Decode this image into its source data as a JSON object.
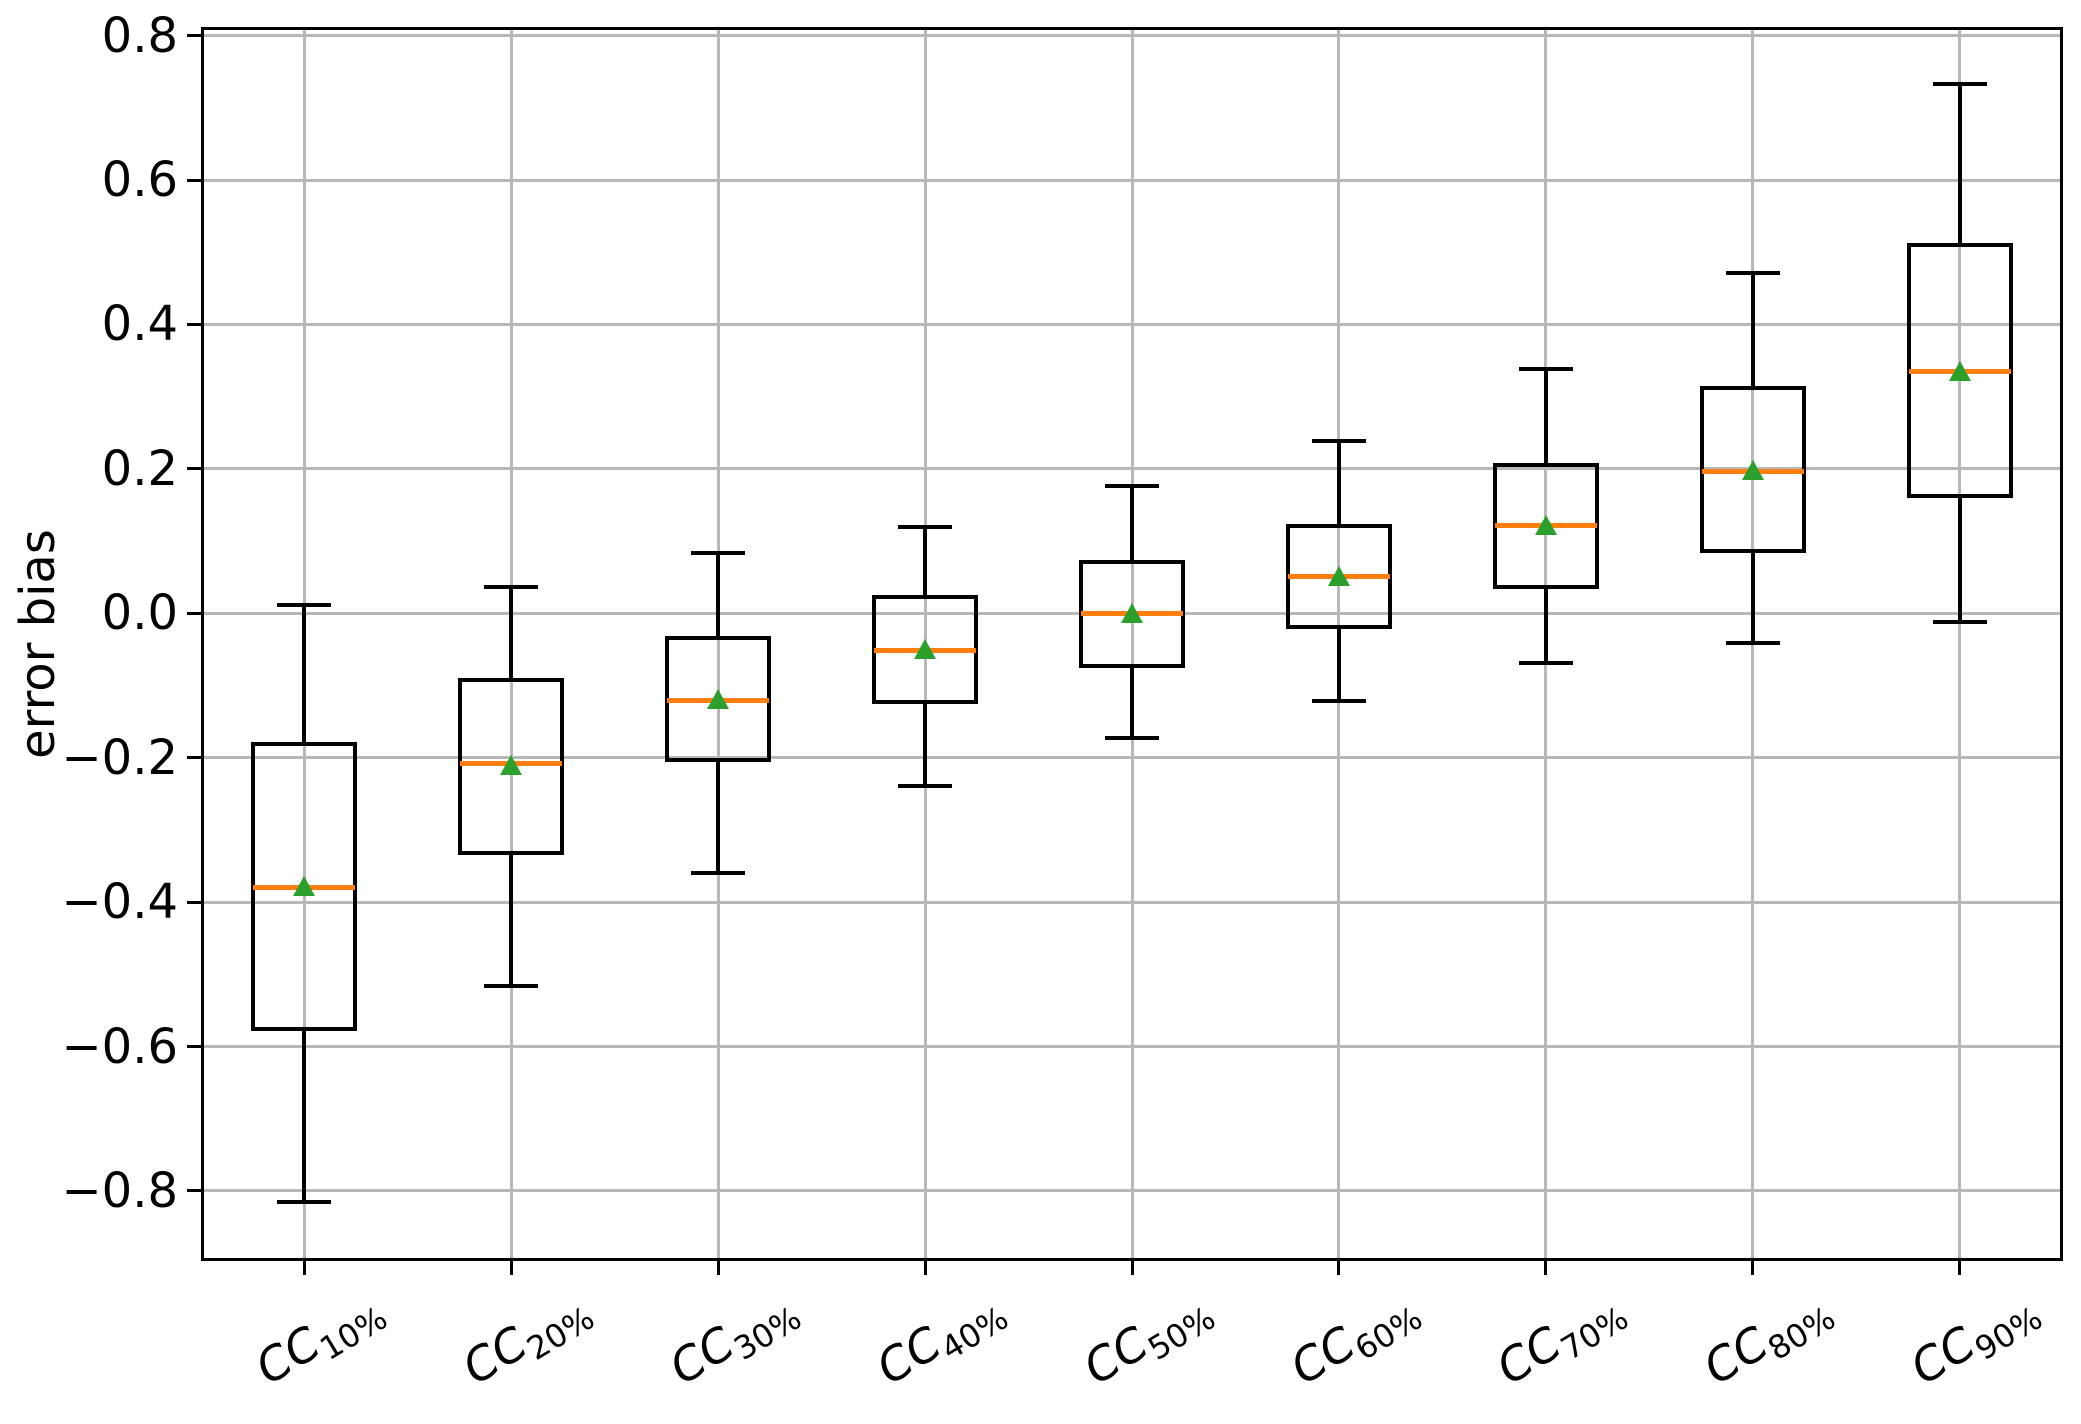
{
  "chart_data": {
    "type": "box",
    "title": "",
    "xlabel": "",
    "ylabel": "error bias",
    "grid": true,
    "legend": null,
    "ylim": [
      -0.897,
      0.812
    ],
    "yticks": [
      {
        "value": 0.8,
        "label": "0.8"
      },
      {
        "value": 0.6,
        "label": "0.6"
      },
      {
        "value": 0.4,
        "label": "0.4"
      },
      {
        "value": 0.2,
        "label": "0.2"
      },
      {
        "value": 0.0,
        "label": "0.0"
      },
      {
        "value": -0.2,
        "label": "−0.2"
      },
      {
        "value": -0.4,
        "label": "−0.4"
      },
      {
        "value": -0.6,
        "label": "−0.6"
      },
      {
        "value": -0.8,
        "label": "−0.8"
      }
    ],
    "categories": [
      {
        "prefix": "CC",
        "subscript": "10%",
        "label": "CC10%"
      },
      {
        "prefix": "CC",
        "subscript": "20%",
        "label": "CC20%"
      },
      {
        "prefix": "CC",
        "subscript": "30%",
        "label": "CC30%"
      },
      {
        "prefix": "CC",
        "subscript": "40%",
        "label": "CC40%"
      },
      {
        "prefix": "CC",
        "subscript": "50%",
        "label": "CC50%"
      },
      {
        "prefix": "CC",
        "subscript": "60%",
        "label": "CC60%"
      },
      {
        "prefix": "CC",
        "subscript": "70%",
        "label": "CC70%"
      },
      {
        "prefix": "CC",
        "subscript": "80%",
        "label": "CC80%"
      },
      {
        "prefix": "CC",
        "subscript": "90%",
        "label": "CC90%"
      }
    ],
    "boxes": [
      {
        "category": "CC10%",
        "whisker_low": -0.815,
        "q1": -0.578,
        "median": -0.38,
        "mean": -0.378,
        "q3": -0.178,
        "whisker_high": 0.012
      },
      {
        "category": "CC20%",
        "whisker_low": -0.516,
        "q1": -0.335,
        "median": -0.208,
        "mean": -0.21,
        "q3": -0.09,
        "whisker_high": 0.036
      },
      {
        "category": "CC30%",
        "whisker_low": -0.36,
        "q1": -0.206,
        "median": -0.121,
        "mean": -0.119,
        "q3": -0.031,
        "whisker_high": 0.084
      },
      {
        "category": "CC40%",
        "whisker_low": -0.239,
        "q1": -0.126,
        "median": -0.051,
        "mean": -0.05,
        "q3": 0.025,
        "whisker_high": 0.12
      },
      {
        "category": "CC50%",
        "whisker_low": -0.173,
        "q1": -0.076,
        "median": 0.0,
        "mean": 0.001,
        "q3": 0.074,
        "whisker_high": 0.176
      },
      {
        "category": "CC60%",
        "whisker_low": -0.122,
        "q1": -0.022,
        "median": 0.051,
        "mean": 0.051,
        "q3": 0.123,
        "whisker_high": 0.239
      },
      {
        "category": "CC70%",
        "whisker_low": -0.069,
        "q1": 0.034,
        "median": 0.121,
        "mean": 0.122,
        "q3": 0.208,
        "whisker_high": 0.339
      },
      {
        "category": "CC80%",
        "whisker_low": -0.041,
        "q1": 0.084,
        "median": 0.197,
        "mean": 0.198,
        "q3": 0.315,
        "whisker_high": 0.471
      },
      {
        "category": "CC90%",
        "whisker_low": -0.012,
        "q1": 0.16,
        "median": 0.335,
        "mean": 0.336,
        "q3": 0.513,
        "whisker_high": 0.733
      }
    ]
  },
  "colors": {
    "median": "#ff7f0e",
    "mean": "#2ca02c",
    "box_edge": "#000000",
    "whisker": "#000000",
    "grid": "#b8b8b8",
    "axis": "#000000",
    "background": "#ffffff"
  }
}
